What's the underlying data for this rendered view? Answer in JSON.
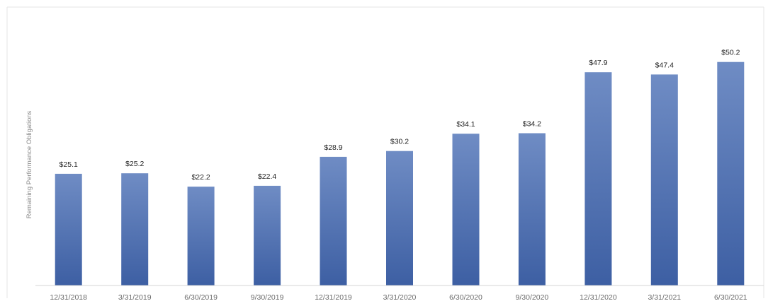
{
  "chart_data": {
    "type": "bar",
    "title": "",
    "xlabel": "",
    "ylabel": "Remaining Performance Obligations",
    "categories": [
      "12/31/2018",
      "3/31/2019",
      "6/30/2019",
      "9/30/2019",
      "12/31/2019",
      "3/31/2020",
      "6/30/2020",
      "9/30/2020",
      "12/31/2020",
      "3/31/2021",
      "6/30/2021"
    ],
    "values": [
      25.1,
      25.2,
      22.2,
      22.4,
      28.9,
      30.2,
      34.1,
      34.2,
      47.9,
      47.4,
      50.2
    ],
    "value_labels": [
      "$25.1",
      "$25.2",
      "$22.2",
      "$22.4",
      "$28.9",
      "$30.2",
      "$34.1",
      "$34.2",
      "$47.9",
      "$47.4",
      "$50.2"
    ],
    "ylim": [
      0,
      60
    ],
    "grid": false,
    "legend": "none",
    "colors": {
      "bar_top": "#6f8cc4",
      "bar_bottom": "#3d5fa3",
      "frame": "#e4e4e4",
      "axis": "#d6d6d6"
    }
  }
}
